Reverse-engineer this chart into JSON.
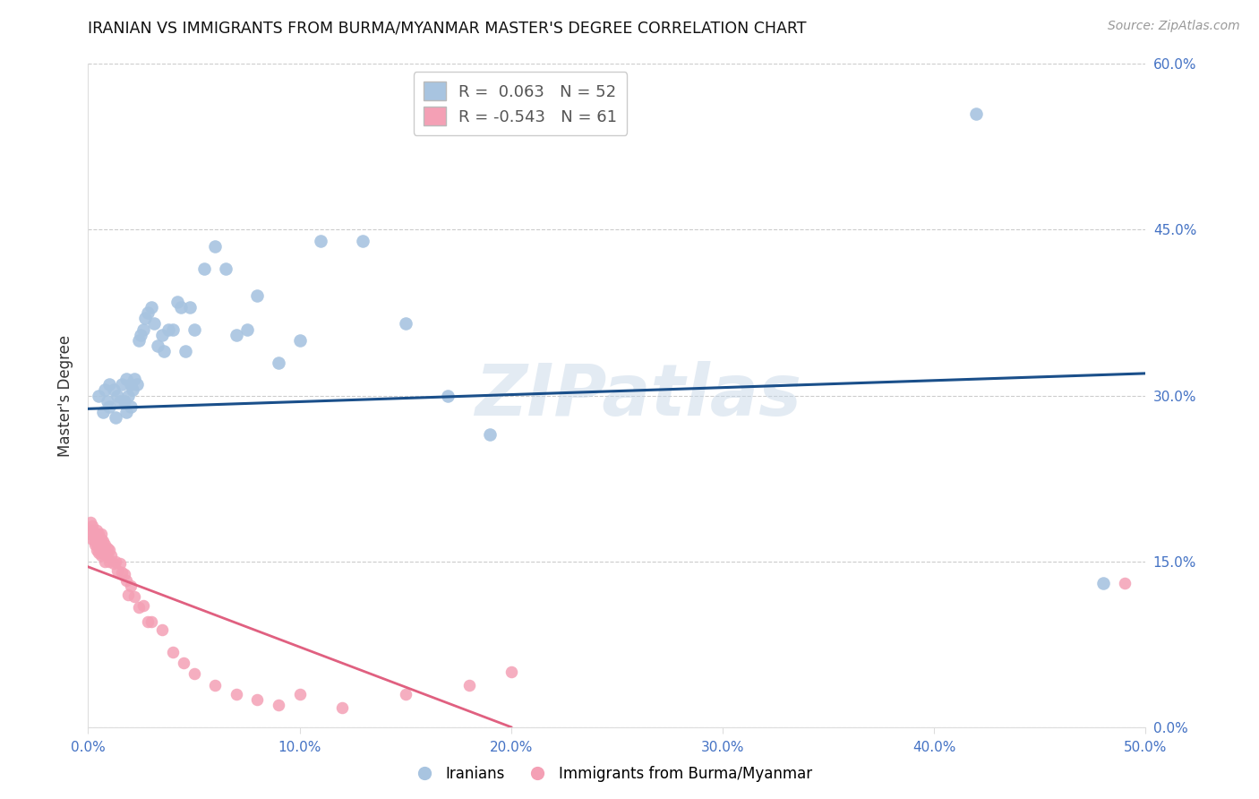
{
  "title": "IRANIAN VS IMMIGRANTS FROM BURMA/MYANMAR MASTER'S DEGREE CORRELATION CHART",
  "source": "Source: ZipAtlas.com",
  "ylabel": "Master's Degree",
  "xlim": [
    0.0,
    0.5
  ],
  "ylim": [
    0.0,
    0.6
  ],
  "xticks": [
    0.0,
    0.1,
    0.2,
    0.3,
    0.4,
    0.5
  ],
  "yticks": [
    0.0,
    0.15,
    0.3,
    0.45,
    0.6
  ],
  "blue_r": 0.063,
  "blue_n": 52,
  "pink_r": -0.543,
  "pink_n": 61,
  "legend_label_blue": "Iranians",
  "legend_label_pink": "Immigrants from Burma/Myanmar",
  "blue_color": "#a8c4e0",
  "pink_color": "#f4a0b5",
  "blue_line_color": "#1a4f8a",
  "pink_line_color": "#e06080",
  "watermark_text": "ZIPatlas",
  "blue_scatter_x": [
    0.005,
    0.007,
    0.008,
    0.009,
    0.01,
    0.01,
    0.012,
    0.013,
    0.014,
    0.015,
    0.016,
    0.017,
    0.018,
    0.018,
    0.019,
    0.02,
    0.02,
    0.021,
    0.022,
    0.023,
    0.024,
    0.025,
    0.026,
    0.027,
    0.028,
    0.03,
    0.031,
    0.033,
    0.035,
    0.036,
    0.038,
    0.04,
    0.042,
    0.044,
    0.046,
    0.048,
    0.05,
    0.055,
    0.06,
    0.065,
    0.07,
    0.075,
    0.08,
    0.09,
    0.1,
    0.11,
    0.13,
    0.15,
    0.17,
    0.19,
    0.42,
    0.48
  ],
  "blue_scatter_y": [
    0.3,
    0.285,
    0.305,
    0.295,
    0.31,
    0.29,
    0.305,
    0.28,
    0.3,
    0.295,
    0.31,
    0.295,
    0.315,
    0.285,
    0.3,
    0.31,
    0.29,
    0.305,
    0.315,
    0.31,
    0.35,
    0.355,
    0.36,
    0.37,
    0.375,
    0.38,
    0.365,
    0.345,
    0.355,
    0.34,
    0.36,
    0.36,
    0.385,
    0.38,
    0.34,
    0.38,
    0.36,
    0.415,
    0.435,
    0.415,
    0.355,
    0.36,
    0.39,
    0.33,
    0.35,
    0.44,
    0.44,
    0.365,
    0.3,
    0.265,
    0.555,
    0.13
  ],
  "pink_scatter_x": [
    0.001,
    0.001,
    0.002,
    0.002,
    0.002,
    0.003,
    0.003,
    0.003,
    0.003,
    0.004,
    0.004,
    0.004,
    0.004,
    0.005,
    0.005,
    0.005,
    0.005,
    0.005,
    0.006,
    0.006,
    0.006,
    0.006,
    0.007,
    0.007,
    0.007,
    0.008,
    0.008,
    0.008,
    0.009,
    0.009,
    0.01,
    0.01,
    0.011,
    0.012,
    0.013,
    0.014,
    0.015,
    0.016,
    0.017,
    0.018,
    0.019,
    0.02,
    0.022,
    0.024,
    0.026,
    0.028,
    0.03,
    0.035,
    0.04,
    0.045,
    0.05,
    0.06,
    0.07,
    0.08,
    0.09,
    0.1,
    0.12,
    0.15,
    0.18,
    0.2,
    0.49
  ],
  "pink_scatter_y": [
    0.175,
    0.185,
    0.17,
    0.178,
    0.182,
    0.168,
    0.175,
    0.172,
    0.165,
    0.178,
    0.17,
    0.165,
    0.16,
    0.175,
    0.172,
    0.168,
    0.163,
    0.158,
    0.175,
    0.17,
    0.162,
    0.155,
    0.168,
    0.163,
    0.158,
    0.165,
    0.158,
    0.15,
    0.162,
    0.155,
    0.16,
    0.15,
    0.155,
    0.148,
    0.15,
    0.142,
    0.148,
    0.14,
    0.138,
    0.133,
    0.12,
    0.128,
    0.118,
    0.108,
    0.11,
    0.095,
    0.095,
    0.088,
    0.068,
    0.058,
    0.048,
    0.038,
    0.03,
    0.025,
    0.02,
    0.03,
    0.018,
    0.03,
    0.038,
    0.05,
    0.13
  ]
}
